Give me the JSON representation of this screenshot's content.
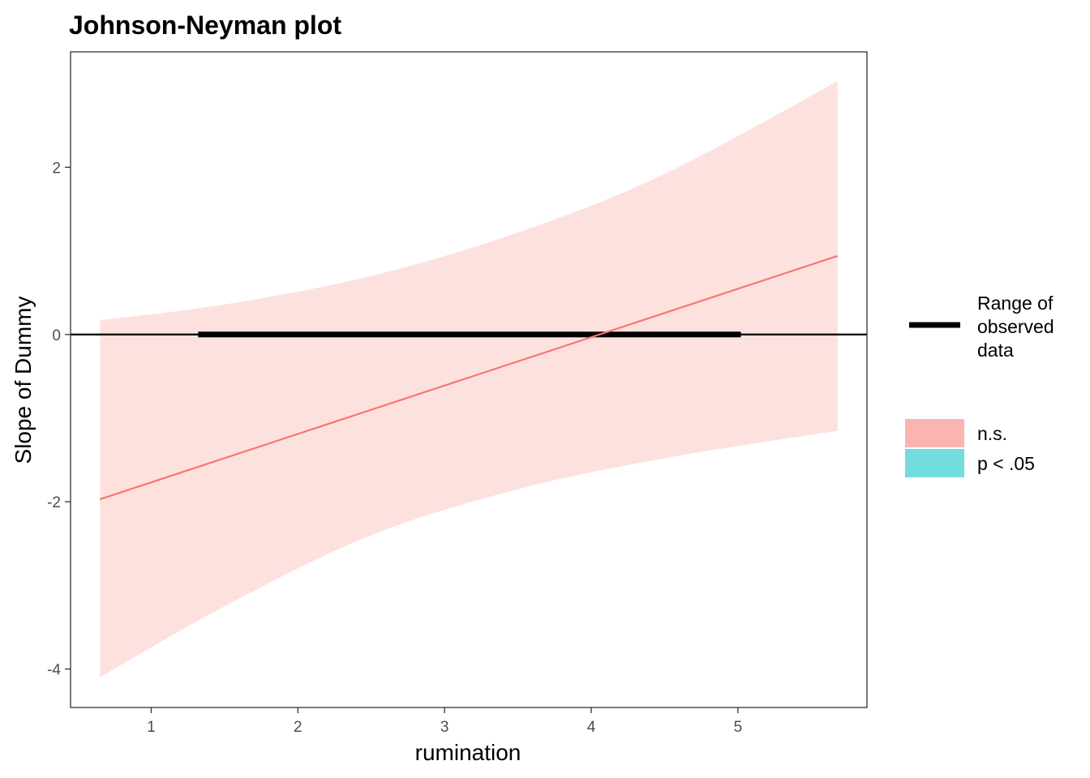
{
  "chart_data": {
    "type": "line",
    "title": "Johnson-Neyman plot",
    "xlabel": "rumination",
    "ylabel": "Slope of Dummy",
    "xlim": [
      0.45,
      5.88
    ],
    "ylim": [
      -4.46,
      3.38
    ],
    "x_ticks": [
      1,
      2,
      3,
      4,
      5
    ],
    "y_ticks": [
      2,
      0,
      -2,
      -4
    ],
    "series": [
      {
        "name": "n.s.",
        "color": "#f8766d",
        "line": {
          "x": [
            0.65,
            5.68
          ],
          "y": [
            -1.97,
            0.94
          ]
        },
        "band": {
          "x": [
            0.65,
            1.5,
            2.5,
            3.5,
            4.5,
            5.68
          ],
          "upper": [
            0.17,
            0.36,
            0.7,
            1.22,
            1.92,
            3.03
          ],
          "lower": [
            -4.1,
            -3.25,
            -2.4,
            -1.85,
            -1.48,
            -1.15
          ]
        }
      }
    ],
    "observed_range": {
      "x": [
        1.32,
        5.02
      ],
      "y": 0
    },
    "reference_line_y": 0,
    "legend_position": "right",
    "legend": {
      "range_label": [
        "Range of",
        "observed",
        "data"
      ],
      "fill_entries": [
        {
          "label": "n.s.",
          "color": "#f8766d"
        },
        {
          "label": "p < .05",
          "color": "#00bfc4"
        }
      ]
    },
    "grid": false
  }
}
